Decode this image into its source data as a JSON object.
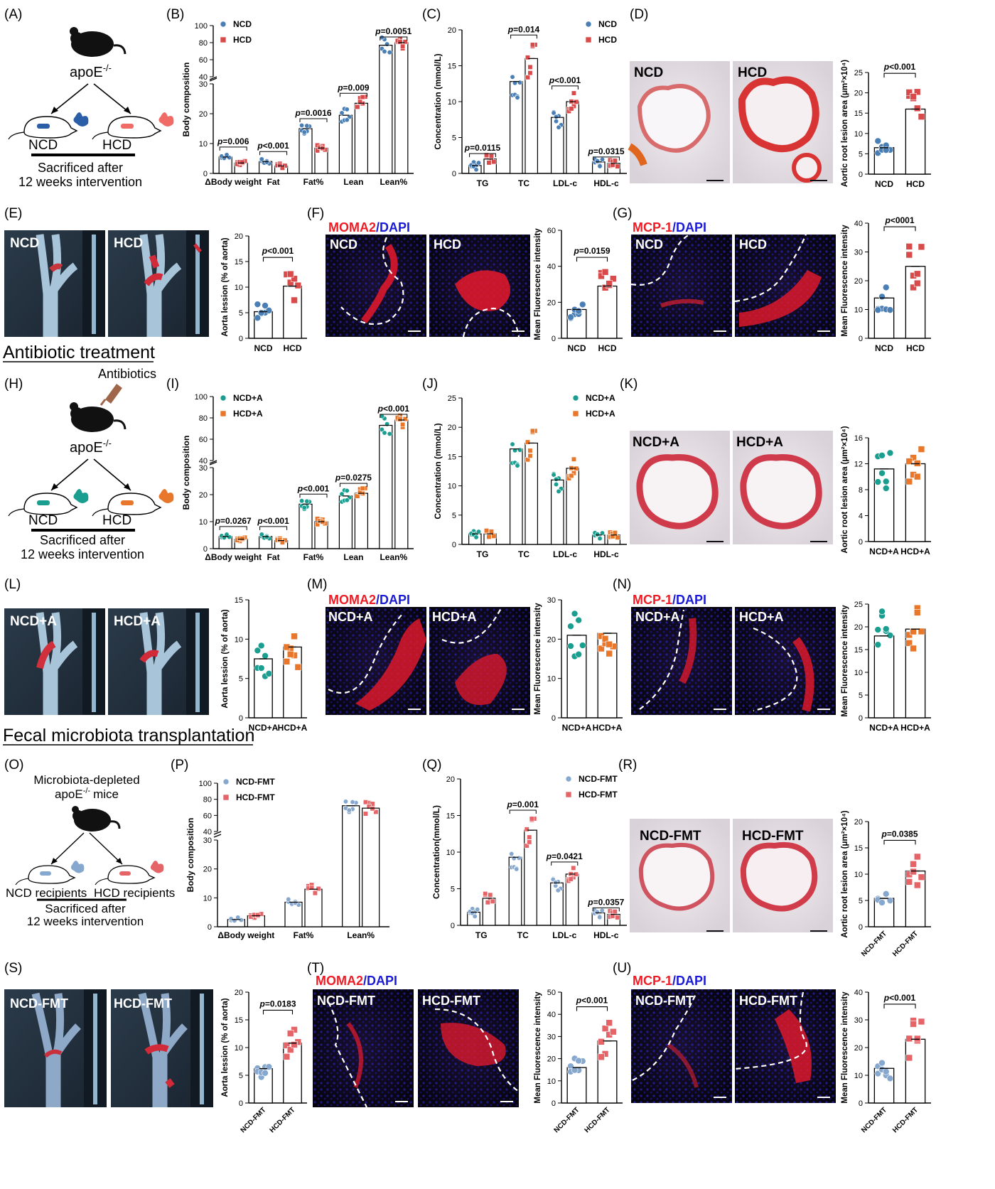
{
  "sections": {
    "antibiotic": "Antibiotic treatment",
    "fmt": "Fecal microbiota transplantation"
  },
  "panels": {
    "A": {
      "letter": "(A)",
      "mouse": "apoE",
      "sup": "-/-",
      "left": "NCD",
      "right": "HCD",
      "line1": "Sacrificed after",
      "line2": "12 weeks intervention"
    },
    "H": {
      "letter": "(H)",
      "mouse": "apoE",
      "sup": "-/-",
      "left": "NCD",
      "right": "HCD",
      "line1": "Sacrificed after",
      "line2": "12 weeks intervention",
      "extra": "Antibiotics"
    },
    "O": {
      "letter": "(O)",
      "top1": "Microbiota-depleted",
      "top2": "apoE",
      "sup": "-/-",
      "top3": "mice",
      "left": "NCD recipients",
      "right": "HCD recipients",
      "line1": "Sacrificed after",
      "line2": "12 weeks intervention"
    },
    "B": {
      "letter": "(B)"
    },
    "C": {
      "letter": "(C)"
    },
    "D": {
      "letter": "(D)",
      "img1": "NCD",
      "img2": "HCD"
    },
    "E": {
      "letter": "(E)",
      "img1": "NCD",
      "img2": "HCD"
    },
    "F": {
      "letter": "(F)",
      "stain1": "MOMA2",
      "stain2": "DAPI",
      "img1": "NCD",
      "img2": "HCD"
    },
    "G": {
      "letter": "(G)",
      "stain1": "MCP-1",
      "stain2": "DAPI",
      "img1": "NCD",
      "img2": "HCD"
    },
    "I": {
      "letter": "(I)"
    },
    "J": {
      "letter": "(J)"
    },
    "K": {
      "letter": "(K)",
      "img1": "NCD+A",
      "img2": "HCD+A"
    },
    "L": {
      "letter": "(L)",
      "img1": "NCD+A",
      "img2": "HCD+A"
    },
    "M": {
      "letter": "(M)",
      "stain1": "MOMA2",
      "stain2": "DAPI",
      "img1": "NCD+A",
      "img2": "HCD+A"
    },
    "N": {
      "letter": "(N)",
      "stain1": "MCP-1",
      "stain2": "DAPI",
      "img1": "NCD+A",
      "img2": "HCD+A"
    },
    "P": {
      "letter": "(P)"
    },
    "Q": {
      "letter": "(Q)"
    },
    "R": {
      "letter": "(R)",
      "img1": "NCD-FMT",
      "img2": "HCD-FMT"
    },
    "S": {
      "letter": "(S)",
      "img1": "NCD-FMT",
      "img2": "HCD-FMT"
    },
    "T": {
      "letter": "(T)",
      "stain1": "MOMA2",
      "stain2": "DAPI",
      "img1": "NCD-FMT",
      "img2": "HCD-FMT"
    },
    "U": {
      "letter": "(U)",
      "stain1": "MCP-1",
      "stain2": "DAPI",
      "img1": "NCD-FMT",
      "img2": "HCD-FMT"
    }
  },
  "colors": {
    "ncd": "#4a7fb5",
    "hcd": "#d94b4b",
    "ncdA": "#1a9e8f",
    "hcdA": "#e8772b",
    "ncdF": "#86a8cf",
    "hcdF": "#e46467",
    "stain": "#ee1c25",
    "dapi": "#1b1bd6"
  },
  "chart_data": [
    {
      "id": "B",
      "type": "bar",
      "ylabel": "Body composition",
      "series": [
        {
          "name": "NCD",
          "values": [
            5.5,
            4,
            15,
            19.5,
            77
          ]
        },
        {
          "name": "HCD",
          "values": [
            3.5,
            2.5,
            8.5,
            23.5,
            80
          ]
        }
      ],
      "categories": [
        "ΔBody weight",
        "Fat",
        "Fat%",
        "Lean",
        "Lean%"
      ],
      "pvalues": [
        "p=0.006",
        "p<0.001",
        "p=0.0016",
        "p=0.009",
        "p=0.0051"
      ],
      "lower_ticks": [
        "0",
        "10",
        "20",
        "30"
      ],
      "upper_ticks": [
        "40",
        "60",
        "80",
        "100"
      ]
    },
    {
      "id": "C",
      "type": "bar",
      "ylabel": "Concentration (mmol/L)",
      "series": [
        {
          "name": "NCD",
          "values": [
            1.1,
            12.8,
            7.8,
            1.6
          ]
        },
        {
          "name": "HCD",
          "values": [
            2,
            16,
            10,
            1.4
          ]
        }
      ],
      "categories": [
        "TG",
        "TC",
        "LDL-c",
        "HDL-c"
      ],
      "pvalues": [
        "p=0.0115",
        "p=0.014",
        "p<0.001",
        "p=0.0315"
      ],
      "ticks": [
        "0",
        "5",
        "10",
        "15",
        "20"
      ],
      "ylim": [
        0,
        20
      ]
    },
    {
      "id": "D",
      "type": "scatter",
      "ylabel": "Aortic root lesion area (μm²×10⁴)",
      "categories": [
        "NCD",
        "HCD"
      ],
      "values": [
        6.5,
        16
      ],
      "ticks": [
        "0",
        "5",
        "10",
        "15",
        "20",
        "25"
      ],
      "ylim": [
        0,
        25
      ],
      "pvalue": "p<0.001"
    },
    {
      "id": "E",
      "type": "scatter",
      "ylabel": "Aorta lession (% of aorta)",
      "categories": [
        "NCD",
        "HCD"
      ],
      "values": [
        5.2,
        10.2
      ],
      "ticks": [
        "0",
        "5",
        "10",
        "15",
        "20"
      ],
      "ylim": [
        0,
        20
      ],
      "pvalue": "p<0.001"
    },
    {
      "id": "F",
      "type": "scatter",
      "ylabel": "Mean Fluorescence intensity",
      "categories": [
        "NCD",
        "HCD"
      ],
      "values": [
        16,
        29
      ],
      "ticks": [
        "0",
        "20",
        "40",
        "60"
      ],
      "ylim": [
        0,
        60
      ],
      "pvalue": "p=0.0159"
    },
    {
      "id": "G",
      "type": "scatter",
      "ylabel": "Mean Fluorescence intensity",
      "categories": [
        "NCD",
        "HCD"
      ],
      "values": [
        14,
        25
      ],
      "ticks": [
        "0",
        "10",
        "20",
        "30",
        "40"
      ],
      "ylim": [
        0,
        40
      ],
      "pvalue": "p<0001"
    },
    {
      "id": "I",
      "type": "bar",
      "ylabel": "Body composition",
      "series": [
        {
          "name": "NCD+A",
          "values": [
            4.5,
            4.5,
            16.5,
            19.5,
            73
          ]
        },
        {
          "name": "HCD+A",
          "values": [
            3.5,
            3,
            10,
            20.5,
            78
          ]
        }
      ],
      "categories": [
        "ΔBody weight",
        "Fat",
        "Fat%",
        "Lean",
        "Lean%"
      ],
      "pvalues": [
        "p=0.0267",
        "p<0.001",
        "p<0.001",
        "p=0.0275",
        "p<0.001"
      ],
      "lower_ticks": [
        "0",
        "10",
        "20",
        "30"
      ],
      "upper_ticks": [
        "40",
        "60",
        "80",
        "100"
      ]
    },
    {
      "id": "J",
      "type": "bar",
      "ylabel": "Concentration (mmol/L)",
      "series": [
        {
          "name": "NCD+A",
          "values": [
            1.8,
            16.3,
            11,
            1.6
          ]
        },
        {
          "name": "HCD+A",
          "values": [
            1.8,
            17.3,
            13,
            1.6
          ]
        }
      ],
      "categories": [
        "TG",
        "TC",
        "LDL-c",
        "HDL-c"
      ],
      "pvalues": [
        "",
        "",
        "",
        ""
      ],
      "ticks": [
        "0",
        "5",
        "10",
        "15",
        "20",
        "25"
      ],
      "ylim": [
        0,
        25
      ]
    },
    {
      "id": "K",
      "type": "scatter",
      "ylabel": "Aortic root lesion area (μm²×10⁴)",
      "categories": [
        "NCD+A",
        "HCD+A"
      ],
      "values": [
        11.2,
        12
      ],
      "ticks": [
        "0",
        "4",
        "8",
        "12",
        "16"
      ],
      "ylim": [
        0,
        16
      ],
      "pvalue": ""
    },
    {
      "id": "L",
      "type": "scatter",
      "ylabel": "Aorta lession (% of aorta)",
      "categories": [
        "NCD+A",
        "HCD+A"
      ],
      "values": [
        7.5,
        9
      ],
      "ticks": [
        "0",
        "5",
        "10",
        "15"
      ],
      "ylim": [
        0,
        15
      ],
      "pvalue": ""
    },
    {
      "id": "M",
      "type": "scatter",
      "ylabel": "Mean Fluorescence intensity",
      "categories": [
        "NCD+A",
        "HCD+A"
      ],
      "values": [
        21,
        21.5
      ],
      "ticks": [
        "0",
        "10",
        "20",
        "30"
      ],
      "ylim": [
        0,
        30
      ],
      "pvalue": ""
    },
    {
      "id": "N",
      "type": "scatter",
      "ylabel": "Mean Fluorescence intensity",
      "categories": [
        "NCD+A",
        "HCD+A"
      ],
      "values": [
        18,
        19.5
      ],
      "ticks": [
        "0",
        "5",
        "10",
        "15",
        "20",
        "25"
      ],
      "ylim": [
        0,
        25
      ],
      "pvalue": ""
    },
    {
      "id": "P",
      "type": "bar",
      "ylabel": "Body composition",
      "series": [
        {
          "name": "NCD-FMT",
          "values": [
            2.5,
            8.5,
            72
          ]
        },
        {
          "name": "HCD-FMT",
          "values": [
            3.8,
            13,
            69
          ]
        }
      ],
      "categories": [
        "ΔBody weight",
        "Fat%",
        "Lean%"
      ],
      "pvalues": [
        "",
        "",
        ""
      ],
      "lower_ticks": [
        "0",
        "10",
        "20",
        "30"
      ],
      "upper_ticks": [
        "40",
        "60",
        "80",
        "100"
      ]
    },
    {
      "id": "Q",
      "type": "bar",
      "ylabel": "Concentration(mmol/L)",
      "series": [
        {
          "name": "NCD-FMT",
          "values": [
            1.8,
            9.3,
            5.8,
            1.7
          ]
        },
        {
          "name": "HCD-FMT",
          "values": [
            3.7,
            13,
            7,
            1.5
          ]
        }
      ],
      "categories": [
        "TG",
        "TC",
        "LDL-c",
        "HDL-c"
      ],
      "pvalues": [
        "",
        "p=0.001",
        "p=0.0421",
        "p=0.0357"
      ],
      "ticks": [
        "0",
        "5",
        "10",
        "15",
        "20"
      ],
      "ylim": [
        0,
        20
      ]
    },
    {
      "id": "R",
      "type": "scatter",
      "ylabel": "Aortic root lesion area (μm²×10⁴)",
      "categories": [
        "NCD-FMT",
        "HCD-FMT"
      ],
      "values": [
        5.4,
        10.6
      ],
      "ticks": [
        "0",
        "5",
        "10",
        "15",
        "20"
      ],
      "ylim": [
        0,
        20
      ],
      "pvalue": "p=0.0385"
    },
    {
      "id": "S",
      "type": "scatter",
      "ylabel": "Aorta lession (% of aorta)",
      "categories": [
        "NCD-FMT",
        "HCD-FMT"
      ],
      "values": [
        6.2,
        10.8
      ],
      "ticks": [
        "0",
        "5",
        "10",
        "15",
        "20"
      ],
      "ylim": [
        0,
        20
      ],
      "pvalue": "p=0.0183"
    },
    {
      "id": "T",
      "type": "scatter",
      "ylabel": "Mean Fluorescence intensity",
      "categories": [
        "NCD-FMT",
        "HCD-FMT"
      ],
      "values": [
        16,
        28
      ],
      "ticks": [
        "0",
        "10",
        "20",
        "30",
        "40",
        "50"
      ],
      "ylim": [
        0,
        50
      ],
      "pvalue": "p<0.001"
    },
    {
      "id": "U",
      "type": "scatter",
      "ylabel": "Mean Fluorescence intensity",
      "categories": [
        "NCD-FMT",
        "HCD-FMT"
      ],
      "values": [
        12.5,
        23
      ],
      "ticks": [
        "0",
        "10",
        "20",
        "30",
        "40"
      ],
      "ylim": [
        0,
        40
      ],
      "pvalue": "p<0.001"
    }
  ]
}
